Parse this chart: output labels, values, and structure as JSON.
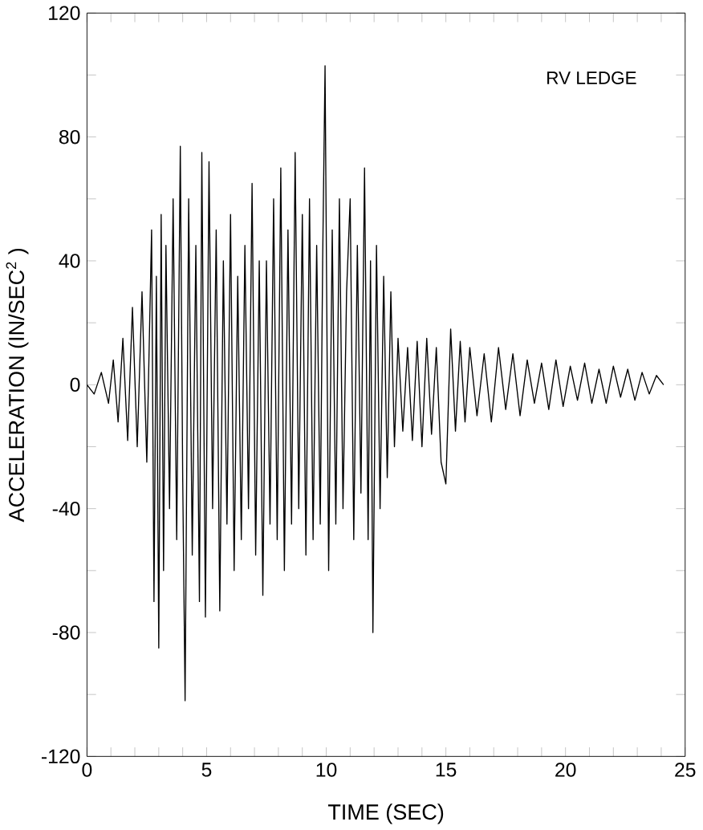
{
  "chart_data": {
    "type": "line",
    "xlabel": "TIME (SEC)",
    "ylabel": "ACCELERATION (IN/SEC$^{2}$ )",
    "annotations": [
      "RV LEDGE"
    ],
    "color": "#000000",
    "grid": false,
    "marker": "none",
    "line_style": "solid",
    "xlim": [
      0,
      25
    ],
    "ylim": [
      -120,
      120
    ],
    "xticks": [
      0,
      {
        "value": 1,
        "label": null
      },
      {
        "value": 2,
        "label": null
      },
      {
        "value": 3,
        "label": null
      },
      {
        "value": 4,
        "label": null
      },
      5,
      {
        "value": 6,
        "label": null
      },
      {
        "value": 7,
        "label": null
      },
      {
        "value": 8,
        "label": null
      },
      {
        "value": 9,
        "label": null
      },
      10,
      {
        "value": 11,
        "label": null
      },
      {
        "value": 12,
        "label": null
      },
      {
        "value": 13,
        "label": null
      },
      {
        "value": 14,
        "label": null
      },
      15,
      {
        "value": 16,
        "label": null
      },
      {
        "value": 17,
        "label": null
      },
      {
        "value": 18,
        "label": null
      },
      {
        "value": 19,
        "label": null
      },
      20,
      {
        "value": 21,
        "label": null
      },
      {
        "value": 22,
        "label": null
      },
      {
        "value": 23,
        "label": null
      },
      {
        "value": 24,
        "label": null
      },
      25
    ],
    "yticks": [
      -120,
      {
        "value": -100,
        "label": null
      },
      -80,
      {
        "value": -60,
        "label": null
      },
      -40,
      {
        "value": -20,
        "label": null
      },
      0,
      {
        "value": 20,
        "label": null
      },
      40,
      {
        "value": 60,
        "label": null
      },
      80,
      {
        "value": 100,
        "label": null
      },
      120
    ],
    "x": [
      0,
      0.3,
      0.6,
      0.9,
      1.1,
      1.3,
      1.5,
      1.7,
      1.9,
      2.1,
      2.3,
      2.5,
      2.7,
      2.8,
      2.9,
      3.0,
      3.1,
      3.2,
      3.3,
      3.45,
      3.6,
      3.75,
      3.9,
      4.0,
      4.1,
      4.25,
      4.4,
      4.55,
      4.7,
      4.8,
      4.95,
      5.1,
      5.25,
      5.4,
      5.55,
      5.7,
      5.85,
      6.0,
      6.15,
      6.3,
      6.45,
      6.6,
      6.75,
      6.9,
      7.05,
      7.2,
      7.35,
      7.5,
      7.65,
      7.8,
      7.95,
      8.1,
      8.25,
      8.4,
      8.55,
      8.7,
      8.85,
      9.0,
      9.15,
      9.3,
      9.45,
      9.6,
      9.75,
      9.85,
      9.95,
      10.1,
      10.25,
      10.4,
      10.55,
      10.7,
      10.85,
      11.0,
      11.15,
      11.3,
      11.45,
      11.6,
      11.75,
      11.85,
      11.95,
      12.1,
      12.25,
      12.4,
      12.55,
      12.7,
      12.85,
      13.0,
      13.2,
      13.4,
      13.6,
      13.8,
      14.0,
      14.2,
      14.4,
      14.6,
      14.8,
      15.0,
      15.2,
      15.4,
      15.6,
      15.8,
      16.0,
      16.3,
      16.6,
      16.9,
      17.2,
      17.5,
      17.8,
      18.1,
      18.4,
      18.7,
      19.0,
      19.3,
      19.6,
      19.9,
      20.2,
      20.5,
      20.8,
      21.1,
      21.4,
      21.7,
      22.0,
      22.3,
      22.6,
      22.9,
      23.2,
      23.5,
      23.8,
      24.1
    ],
    "values": [
      0,
      -3,
      4,
      -6,
      8,
      -12,
      15,
      -18,
      25,
      -20,
      30,
      -25,
      50,
      -70,
      35,
      -85,
      55,
      -60,
      45,
      -40,
      60,
      -50,
      77,
      -30,
      -102,
      60,
      -55,
      45,
      -70,
      75,
      -75,
      72,
      -40,
      50,
      -73,
      40,
      -45,
      55,
      -60,
      35,
      -50,
      45,
      -40,
      65,
      -55,
      40,
      -68,
      40,
      -45,
      60,
      -50,
      70,
      -60,
      50,
      -45,
      75,
      -40,
      55,
      -55,
      60,
      -50,
      45,
      -45,
      40,
      103,
      -60,
      50,
      -45,
      60,
      -40,
      30,
      60,
      -50,
      45,
      -35,
      70,
      -50,
      40,
      -80,
      45,
      -40,
      35,
      -30,
      30,
      -20,
      15,
      -15,
      12,
      -18,
      14,
      -20,
      15,
      -16,
      12,
      -25,
      -32,
      18,
      -15,
      14,
      -12,
      12,
      -10,
      10,
      -12,
      12,
      -8,
      10,
      -10,
      8,
      -6,
      7,
      -8,
      8,
      -7,
      6,
      -5,
      7,
      -6,
      5,
      -6,
      6,
      -4,
      5,
      -5,
      4,
      -3,
      3,
      0
    ]
  }
}
